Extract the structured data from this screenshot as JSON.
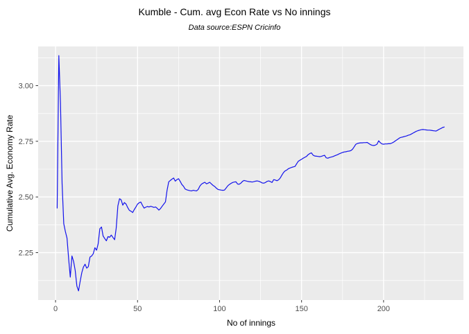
{
  "header": {
    "title": "Kumble - Cum. avg Econ Rate vs No innings",
    "subtitle": "Data source:ESPN Cricinfo"
  },
  "chart_data": {
    "type": "line",
    "title": "Kumble - Cum. avg Econ Rate vs No innings",
    "subtitle": "Data source:ESPN Cricinfo",
    "xlabel": "No of innings",
    "ylabel": "Cumulative Avg. Economy Rate",
    "xlim": [
      -10.6,
      248.7
    ],
    "ylim": [
      2.037,
      3.176
    ],
    "x_ticks": [
      0,
      50,
      100,
      150,
      200
    ],
    "y_ticks": [
      2.25,
      2.5,
      2.75,
      3.0
    ],
    "x_minor_ticks": [
      25,
      75,
      125,
      175,
      225
    ],
    "y_minor_ticks": [
      2.125,
      2.375,
      2.625,
      2.875,
      3.125
    ],
    "grid": true,
    "legend_position": "none",
    "series": [
      {
        "name": "cumulative-avg-economy-rate",
        "x_start": 1,
        "x_step": 1,
        "values": [
          2.45,
          3.135,
          2.92,
          2.56,
          2.38,
          2.345,
          2.315,
          2.22,
          2.14,
          2.235,
          2.21,
          2.17,
          2.1,
          2.078,
          2.12,
          2.16,
          2.185,
          2.198,
          2.18,
          2.187,
          2.23,
          2.235,
          2.245,
          2.272,
          2.261,
          2.29,
          2.357,
          2.365,
          2.325,
          2.313,
          2.303,
          2.322,
          2.319,
          2.329,
          2.318,
          2.308,
          2.36,
          2.46,
          2.492,
          2.487,
          2.463,
          2.475,
          2.468,
          2.452,
          2.44,
          2.436,
          2.43,
          2.443,
          2.455,
          2.468,
          2.474,
          2.477,
          2.462,
          2.45,
          2.454,
          2.457,
          2.455,
          2.458,
          2.456,
          2.453,
          2.455,
          2.449,
          2.441,
          2.448,
          2.458,
          2.468,
          2.478,
          2.53,
          2.568,
          2.574,
          2.58,
          2.585,
          2.571,
          2.578,
          2.582,
          2.57,
          2.556,
          2.548,
          2.536,
          2.532,
          2.53,
          2.528,
          2.527,
          2.53,
          2.528,
          2.527,
          2.534,
          2.549,
          2.558,
          2.562,
          2.566,
          2.559,
          2.562,
          2.566,
          2.559,
          2.552,
          2.547,
          2.54,
          2.534,
          2.532,
          2.531,
          2.53,
          2.531,
          2.54,
          2.55,
          2.556,
          2.561,
          2.565,
          2.567,
          2.568,
          2.558,
          2.557,
          2.562,
          2.57,
          2.574,
          2.572,
          2.57,
          2.569,
          2.568,
          2.567,
          2.569,
          2.571,
          2.572,
          2.57,
          2.567,
          2.563,
          2.562,
          2.565,
          2.57,
          2.572,
          2.569,
          2.565,
          2.578,
          2.576,
          2.573,
          2.577,
          2.585,
          2.598,
          2.61,
          2.617,
          2.621,
          2.627,
          2.63,
          2.633,
          2.635,
          2.637,
          2.649,
          2.66,
          2.665,
          2.669,
          2.674,
          2.678,
          2.682,
          2.69,
          2.695,
          2.698,
          2.688,
          2.684,
          2.683,
          2.682,
          2.681,
          2.682,
          2.685,
          2.687,
          2.676,
          2.674,
          2.677,
          2.679,
          2.681,
          2.684,
          2.687,
          2.69,
          2.694,
          2.697,
          2.7,
          2.702,
          2.703,
          2.705,
          2.706,
          2.708,
          2.714,
          2.724,
          2.736,
          2.74,
          2.742,
          2.743,
          2.743,
          2.744,
          2.744,
          2.745,
          2.74,
          2.735,
          2.732,
          2.731,
          2.733,
          2.737,
          2.752,
          2.744,
          2.738,
          2.737,
          2.738,
          2.738,
          2.739,
          2.739,
          2.742,
          2.746,
          2.751,
          2.756,
          2.761,
          2.766,
          2.768,
          2.77,
          2.772,
          2.774,
          2.777,
          2.779,
          2.783,
          2.787,
          2.791,
          2.795,
          2.798,
          2.8,
          2.802,
          2.803,
          2.802,
          2.801,
          2.8,
          2.8,
          2.799,
          2.798,
          2.797,
          2.796,
          2.8,
          2.804,
          2.808,
          2.812,
          2.814
        ]
      }
    ],
    "colors": {
      "line": "#1212EC",
      "panel_bg": "#EBEBEB",
      "grid": "#FFFFFF",
      "tick_text": "#4D4D4D",
      "tick_mark": "#333333",
      "text": "#000000",
      "background": "#FFFFFF"
    }
  }
}
